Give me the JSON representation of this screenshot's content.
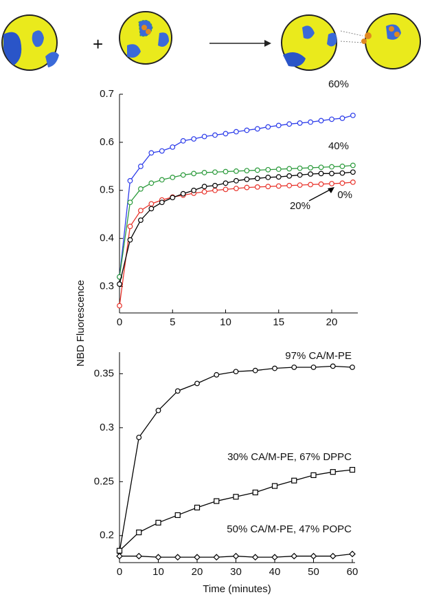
{
  "chart_data": [
    {
      "type": "line",
      "x": [
        0,
        1,
        2,
        3,
        4,
        5,
        6,
        7,
        8,
        9,
        10,
        11,
        12,
        13,
        14,
        15,
        16,
        17,
        18,
        19,
        20,
        21,
        22
      ],
      "xlim": [
        0,
        22.2
      ],
      "xticks": [
        0,
        5,
        10,
        15,
        20
      ],
      "ylim": [
        0.245,
        0.7
      ],
      "yticks": [
        0.3,
        0.4,
        0.5,
        0.6,
        0.7
      ],
      "series": [
        {
          "name": "60%",
          "color": "#2b3bea",
          "marker": "circle",
          "values": [
            0.32,
            0.52,
            0.55,
            0.578,
            0.582,
            0.59,
            0.603,
            0.607,
            0.612,
            0.615,
            0.618,
            0.622,
            0.625,
            0.628,
            0.632,
            0.635,
            0.638,
            0.64,
            0.642,
            0.645,
            0.648,
            0.65,
            0.656
          ]
        },
        {
          "name": "40%",
          "color": "#2a9a3a",
          "marker": "circle",
          "values": [
            0.32,
            0.475,
            0.503,
            0.515,
            0.522,
            0.527,
            0.532,
            0.535,
            0.537,
            0.538,
            0.539,
            0.54,
            0.541,
            0.542,
            0.543,
            0.544,
            0.545,
            0.546,
            0.547,
            0.548,
            0.549,
            0.55,
            0.552
          ]
        },
        {
          "name": "0%",
          "color": "#e8322a",
          "marker": "circle",
          "values": [
            0.26,
            0.425,
            0.458,
            0.472,
            0.48,
            0.486,
            0.49,
            0.494,
            0.497,
            0.5,
            0.502,
            0.504,
            0.506,
            0.507,
            0.508,
            0.509,
            0.51,
            0.511,
            0.512,
            0.513,
            0.514,
            0.515,
            0.517
          ]
        },
        {
          "name": "20%",
          "color": "#000000",
          "marker": "circle",
          "values": [
            0.305,
            0.397,
            0.438,
            0.462,
            0.475,
            0.485,
            0.493,
            0.5,
            0.508,
            0.51,
            0.515,
            0.52,
            0.523,
            0.525,
            0.527,
            0.528,
            0.53,
            0.532,
            0.534,
            0.535,
            0.535,
            0.536,
            0.538
          ]
        }
      ]
    },
    {
      "type": "line",
      "x_label": "Time (minutes)",
      "y_label": "NBD Fluorescence",
      "x": [
        0,
        5,
        10,
        15,
        20,
        25,
        30,
        35,
        40,
        45,
        50,
        55,
        60
      ],
      "xlim": [
        0,
        60
      ],
      "xticks": [
        0,
        10,
        20,
        30,
        40,
        50,
        60
      ],
      "ylim": [
        0.175,
        0.37
      ],
      "yticks": [
        0.2,
        0.25,
        0.3,
        0.35
      ],
      "series": [
        {
          "name": "97% CA/M-PE",
          "color": "#000000",
          "marker": "circle",
          "values": [
            0.185,
            0.291,
            0.316,
            0.334,
            0.341,
            0.349,
            0.352,
            0.353,
            0.355,
            0.356,
            0.356,
            0.357,
            0.356
          ]
        },
        {
          "name": "30% CA/M-PE, 67% DPPC",
          "color": "#000000",
          "marker": "square",
          "values": [
            0.186,
            0.203,
            0.212,
            0.219,
            0.226,
            0.232,
            0.236,
            0.24,
            0.246,
            0.251,
            0.256,
            0.259,
            0.261
          ]
        },
        {
          "name": "50% CA/M-PE, 47% POPC",
          "color": "#000000",
          "marker": "diamond",
          "values": [
            0.181,
            0.181,
            0.18,
            0.18,
            0.18,
            0.18,
            0.181,
            0.18,
            0.18,
            0.181,
            0.181,
            0.181,
            0.183
          ]
        }
      ]
    }
  ]
}
